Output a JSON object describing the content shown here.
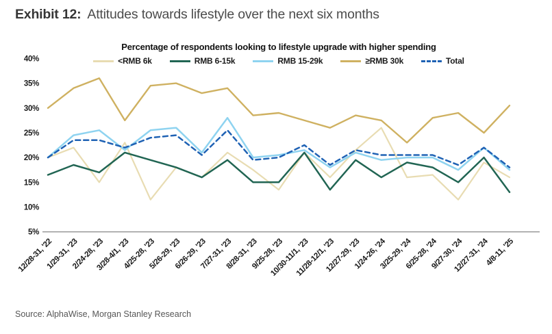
{
  "header": {
    "exhibit_label": "Exhibit 12:",
    "title": "Attitudes towards lifestyle over the next six months"
  },
  "source": "Source: AlphaWise, Morgan Stanley Research",
  "colors": {
    "axis_line": "#9e9e9e",
    "tick_text": "#1a1a1a",
    "background": "#ffffff"
  },
  "chart_data": {
    "type": "line",
    "title": "Percentage of respondents looking to lifestyle upgrade with higher spending",
    "categories": [
      "12/28-31, '22",
      "1/29-31, '23",
      "2/24-28, '23",
      "3/28-4/1, '23",
      "4/25-28, '23",
      "5/26-29, '23",
      "6/26-29, '23",
      "7/27-31, '23",
      "8/28-31, '23",
      "9/25-28, '23",
      "10/30-11/1, '23",
      "11/28-12/1, '23",
      "12/27-29, '23",
      "1/24-26, '24",
      "3/25-29, '24",
      "6/25-28, '24",
      "9/27-30, '24",
      "12/27-31, '24",
      "4/8-11, '25"
    ],
    "series": [
      {
        "name": "<RMB 6k",
        "color": "#e8dcb2",
        "dash": "solid",
        "width": 2.2,
        "values": [
          20,
          22,
          15,
          23,
          11.5,
          18,
          16,
          21,
          17.5,
          13.5,
          21,
          16,
          21.5,
          26,
          16,
          16.5,
          11.5,
          19,
          16
        ]
      },
      {
        "name": "RMB 6-15k",
        "color": "#216553",
        "dash": "solid",
        "width": 2.5,
        "values": [
          16.5,
          18.5,
          17,
          21,
          19.5,
          18,
          16,
          19.5,
          15,
          15,
          21,
          13.5,
          19.5,
          16,
          19,
          18,
          15,
          20,
          13
        ]
      },
      {
        "name": "RMB 15-29k",
        "color": "#8ed3f0",
        "dash": "solid",
        "width": 2.5,
        "values": [
          20,
          24.5,
          25.5,
          21.5,
          25.5,
          26,
          21,
          28,
          20,
          20.5,
          21.5,
          18,
          21,
          19.5,
          20,
          20,
          17.5,
          22,
          17.5
        ]
      },
      {
        "name": "≥RMB 30k",
        "color": "#cfb161",
        "dash": "solid",
        "width": 2.4,
        "values": [
          30,
          34,
          36,
          27.5,
          34.5,
          35,
          33,
          34,
          28.5,
          29,
          27.5,
          26,
          28.5,
          27.5,
          23,
          28,
          29,
          25,
          30.5
        ]
      },
      {
        "name": "Total",
        "color": "#1f62b4",
        "dash": "dashed",
        "width": 2.5,
        "values": [
          20,
          23.5,
          23.5,
          22,
          24,
          24.5,
          20.5,
          25.5,
          19.5,
          20,
          22.5,
          18.5,
          21.5,
          20.5,
          20.5,
          20.5,
          18.5,
          22,
          18
        ]
      }
    ],
    "ylim": [
      5,
      40
    ],
    "ytick_step": 5,
    "ytick_suffix": "%",
    "grid": false,
    "legend_position": "top"
  }
}
